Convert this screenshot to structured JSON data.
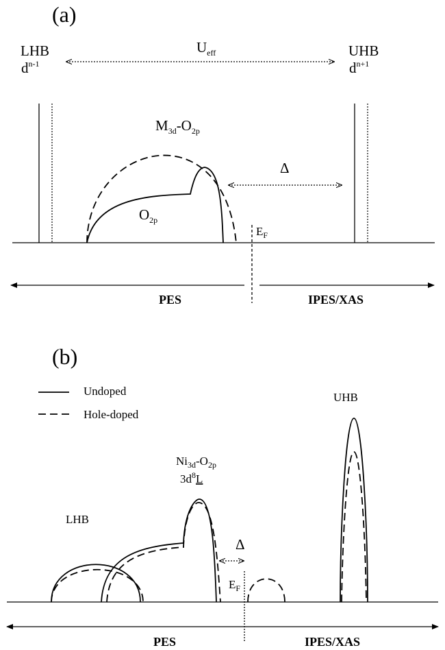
{
  "panel_a": {
    "label": "(a)",
    "lhb": {
      "name": "LHB",
      "config_base": "d",
      "config_sup": "n-1"
    },
    "uhb": {
      "name": "UHB",
      "config_base": "d",
      "config_sup": "n+1"
    },
    "ueff": {
      "base": "U",
      "sub": "eff"
    },
    "hybrid": {
      "m": "M",
      "m_sub": "3d",
      "dash": "-O",
      "o_sub": "2p"
    },
    "o2p": {
      "base": "O",
      "sub": "2p"
    },
    "delta": "Δ",
    "fermi": {
      "base": "E",
      "sub": "F"
    },
    "pes": "PES",
    "ipes": "IPES/XAS"
  },
  "panel_b": {
    "label": "(b)",
    "legend": {
      "solid": "Undoped",
      "dashed": "Hole-doped"
    },
    "uhb": "UHB",
    "lhb": "LHB",
    "hybrid": {
      "ni": "Ni",
      "ni_sub": "3d",
      "dash": "-O",
      "o_sub": "2p"
    },
    "ligand": {
      "base": "3d",
      "sup": "8",
      "L": "L"
    },
    "delta": "Δ",
    "fermi": {
      "base": "E",
      "sub": "F"
    },
    "pes": "PES",
    "ipes": "IPES/XAS"
  },
  "colors": {
    "ink": "#000000",
    "background": "#ffffff"
  }
}
